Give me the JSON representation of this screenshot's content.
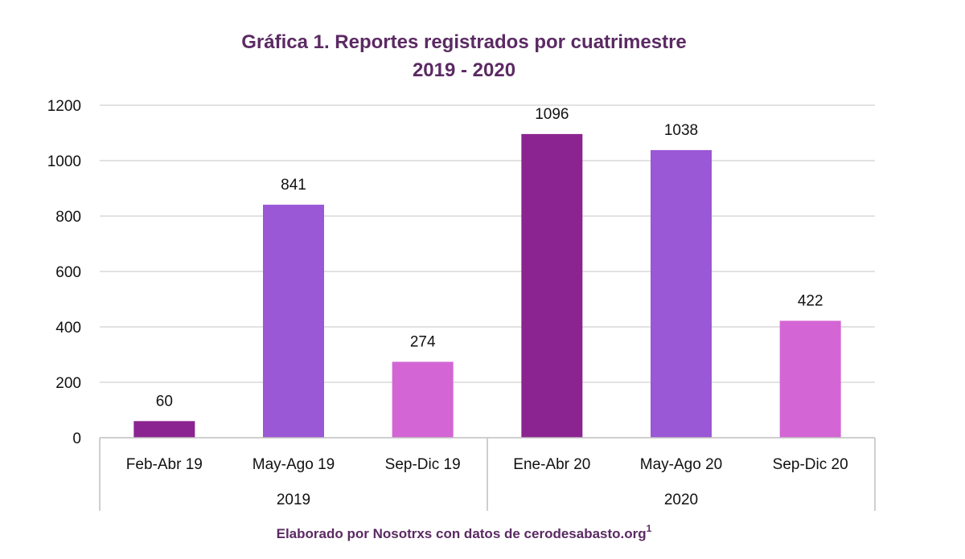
{
  "colors": {
    "title": "#5b2a63",
    "grid": "#d9d9d9",
    "axis": "#bfbfbf",
    "text": "#111111"
  },
  "chart_data": {
    "type": "bar",
    "title_line1": "Gráfica 1. Reportes registrados por cuatrimestre",
    "title_line2": "2019 - 2020",
    "categories": [
      "Feb-Abr 19",
      "May-Ago 19",
      "Sep-Dic 19",
      "Ene-Abr 20",
      "May-Ago 20",
      "Sep-Dic 20"
    ],
    "values": [
      60,
      841,
      274,
      1096,
      1038,
      422
    ],
    "bar_colors": [
      "#8b2490",
      "#9a57d6",
      "#d366d4",
      "#8b2490",
      "#9a57d6",
      "#d366d4"
    ],
    "groups": [
      {
        "label": "2019",
        "count": 3
      },
      {
        "label": "2020",
        "count": 3
      }
    ],
    "ylim": [
      0,
      1200
    ],
    "yticks": [
      0,
      200,
      400,
      600,
      800,
      1000,
      1200
    ],
    "grid": true,
    "xlabel": "",
    "ylabel": ""
  },
  "footer": {
    "text": "Elaborado por Nosotrxs con datos de cerodesabasto.org",
    "superscript": "1"
  }
}
